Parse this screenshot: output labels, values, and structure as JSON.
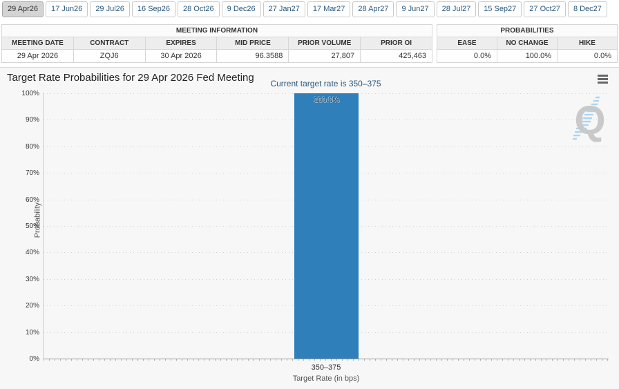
{
  "tabs": {
    "items": [
      {
        "label": "29 Apr26",
        "selected": true
      },
      {
        "label": "17 Jun26",
        "selected": false
      },
      {
        "label": "29 Jul26",
        "selected": false
      },
      {
        "label": "16 Sep26",
        "selected": false
      },
      {
        "label": "28 Oct26",
        "selected": false
      },
      {
        "label": "9 Dec26",
        "selected": false
      },
      {
        "label": "27 Jan27",
        "selected": false
      },
      {
        "label": "17 Mar27",
        "selected": false
      },
      {
        "label": "28 Apr27",
        "selected": false
      },
      {
        "label": "9 Jun27",
        "selected": false
      },
      {
        "label": "28 Jul27",
        "selected": false
      },
      {
        "label": "15 Sep27",
        "selected": false
      },
      {
        "label": "27 Oct27",
        "selected": false
      },
      {
        "label": "8 Dec27",
        "selected": false
      }
    ]
  },
  "meeting_info": {
    "title": "MEETING INFORMATION",
    "columns": [
      "MEETING DATE",
      "CONTRACT",
      "EXPIRES",
      "MID PRICE",
      "PRIOR VOLUME",
      "PRIOR OI"
    ],
    "values": [
      "29 Apr 2026",
      "ZQJ6",
      "30 Apr 2026",
      "96.3588",
      "27,807",
      "425,463"
    ]
  },
  "probabilities": {
    "title": "PROBABILITIES",
    "columns": [
      "EASE",
      "NO CHANGE",
      "HIKE"
    ],
    "values": [
      "0.0%",
      "100.0%",
      "0.0%"
    ]
  },
  "chart": {
    "title": "Target Rate Probabilities for 29 Apr 2026 Fed Meeting",
    "subtitle": "Current target rate is 350–375",
    "watermark_letter": "Q"
  },
  "chart_data": {
    "type": "bar",
    "title": "Target Rate Probabilities for 29 Apr 2026 Fed Meeting",
    "subtitle": "Current target rate is 350–375",
    "categories": [
      "350–375"
    ],
    "values": [
      100.0
    ],
    "data_labels": [
      "100.0%"
    ],
    "xlabel": "Target Rate (in bps)",
    "ylabel": "Probability",
    "ylim": [
      0,
      100
    ],
    "ytick_step": 10,
    "ytick_suffix": "%",
    "grid": "dotted-horizontal",
    "legend_position": "none",
    "bar_color": "#2e7fba"
  },
  "colors": {
    "bar": "#2e7fba",
    "tab_text": "#29587e",
    "subtitle_text": "#29587e",
    "chart_background": "#f7f7f7",
    "watermark_gray": "#c9c9c9",
    "watermark_blue": "#aed4ef"
  }
}
